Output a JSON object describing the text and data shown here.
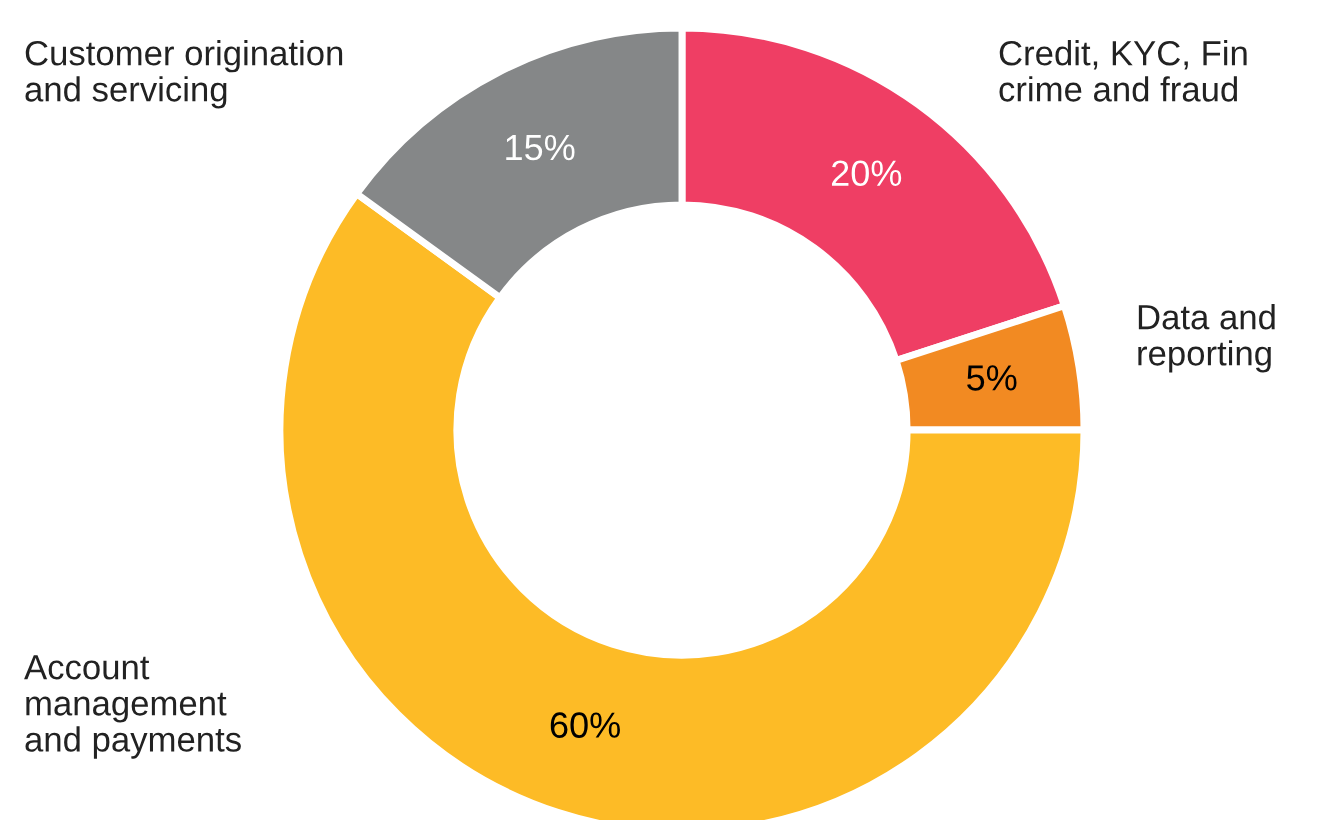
{
  "chart_data": {
    "type": "donut",
    "categories": [
      "Credit, KYC, Fin\ncrime and fraud",
      "Data and\nreporting",
      "Account\nmanagement\nand payments",
      "Customer origination\nand servicing"
    ],
    "values": [
      20,
      5,
      60,
      15
    ],
    "colors": [
      "#ef3e64",
      "#f28a22",
      "#fdbb26",
      "#858788"
    ],
    "value_labels": [
      "20%",
      "5%",
      "60%",
      "15%"
    ]
  }
}
